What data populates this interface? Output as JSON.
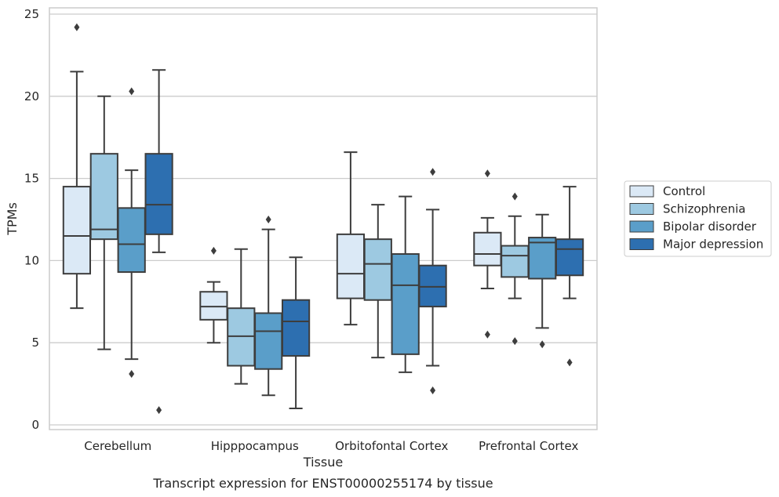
{
  "chart_data": {
    "type": "box",
    "title": "",
    "caption": "Transcript expression for ENST00000255174 by tissue",
    "xlabel": "Tissue",
    "ylabel": "TPMs",
    "ylim": [
      -0.3,
      25.5
    ],
    "yticks": [
      0,
      5,
      10,
      15,
      20,
      25
    ],
    "grid": true,
    "legend_position": "right",
    "categories": [
      "Cerebellum",
      "Hipppocampus",
      "Orbitofontal Cortex",
      "Prefrontal Cortex"
    ],
    "series": [
      {
        "name": "Control",
        "color": "#dbe9f6",
        "boxes": [
          {
            "whisker_low": 7.1,
            "q1": 9.2,
            "median": 11.5,
            "q3": 14.5,
            "whisker_high": 21.5,
            "outliers": [
              24.2
            ]
          },
          {
            "whisker_low": 5.0,
            "q1": 6.4,
            "median": 7.2,
            "q3": 8.1,
            "whisker_high": 8.7,
            "outliers": [
              10.6
            ]
          },
          {
            "whisker_low": 6.1,
            "q1": 7.7,
            "median": 9.2,
            "q3": 11.6,
            "whisker_high": 16.6,
            "outliers": []
          },
          {
            "whisker_low": 8.3,
            "q1": 9.7,
            "median": 10.4,
            "q3": 11.7,
            "whisker_high": 12.6,
            "outliers": [
              15.3,
              5.5
            ]
          }
        ]
      },
      {
        "name": "Schizophrenia",
        "color": "#9dc9e1",
        "boxes": [
          {
            "whisker_low": 4.6,
            "q1": 11.3,
            "median": 11.9,
            "q3": 16.5,
            "whisker_high": 20.0,
            "outliers": []
          },
          {
            "whisker_low": 2.5,
            "q1": 3.6,
            "median": 5.4,
            "q3": 7.1,
            "whisker_high": 10.7,
            "outliers": []
          },
          {
            "whisker_low": 4.1,
            "q1": 7.6,
            "median": 9.8,
            "q3": 11.3,
            "whisker_high": 13.4,
            "outliers": []
          },
          {
            "whisker_low": 7.7,
            "q1": 9.0,
            "median": 10.3,
            "q3": 10.9,
            "whisker_high": 12.7,
            "outliers": [
              13.9,
              5.1
            ]
          }
        ]
      },
      {
        "name": "Bipolar disorder",
        "color": "#5a9ec9",
        "boxes": [
          {
            "whisker_low": 4.0,
            "q1": 9.3,
            "median": 11.0,
            "q3": 13.2,
            "whisker_high": 15.5,
            "outliers": [
              20.3,
              3.1
            ]
          },
          {
            "whisker_low": 1.8,
            "q1": 3.4,
            "median": 5.7,
            "q3": 6.8,
            "whisker_high": 11.9,
            "outliers": [
              12.5
            ]
          },
          {
            "whisker_low": 3.2,
            "q1": 4.3,
            "median": 8.5,
            "q3": 10.4,
            "whisker_high": 13.9,
            "outliers": []
          },
          {
            "whisker_low": 5.9,
            "q1": 8.9,
            "median": 11.1,
            "q3": 11.4,
            "whisker_high": 12.8,
            "outliers": [
              4.9
            ]
          }
        ]
      },
      {
        "name": "Major depression",
        "color": "#2d6fb0",
        "boxes": [
          {
            "whisker_low": 10.5,
            "q1": 11.6,
            "median": 13.4,
            "q3": 16.5,
            "whisker_high": 21.6,
            "outliers": [
              0.9
            ]
          },
          {
            "whisker_low": 1.0,
            "q1": 4.2,
            "median": 6.3,
            "q3": 7.6,
            "whisker_high": 10.2,
            "outliers": []
          },
          {
            "whisker_low": 3.6,
            "q1": 7.2,
            "median": 8.4,
            "q3": 9.7,
            "whisker_high": 13.1,
            "outliers": [
              15.4,
              2.1
            ]
          },
          {
            "whisker_low": 7.7,
            "q1": 9.1,
            "median": 10.7,
            "q3": 11.3,
            "whisker_high": 14.5,
            "outliers": [
              3.8
            ]
          }
        ]
      }
    ]
  }
}
